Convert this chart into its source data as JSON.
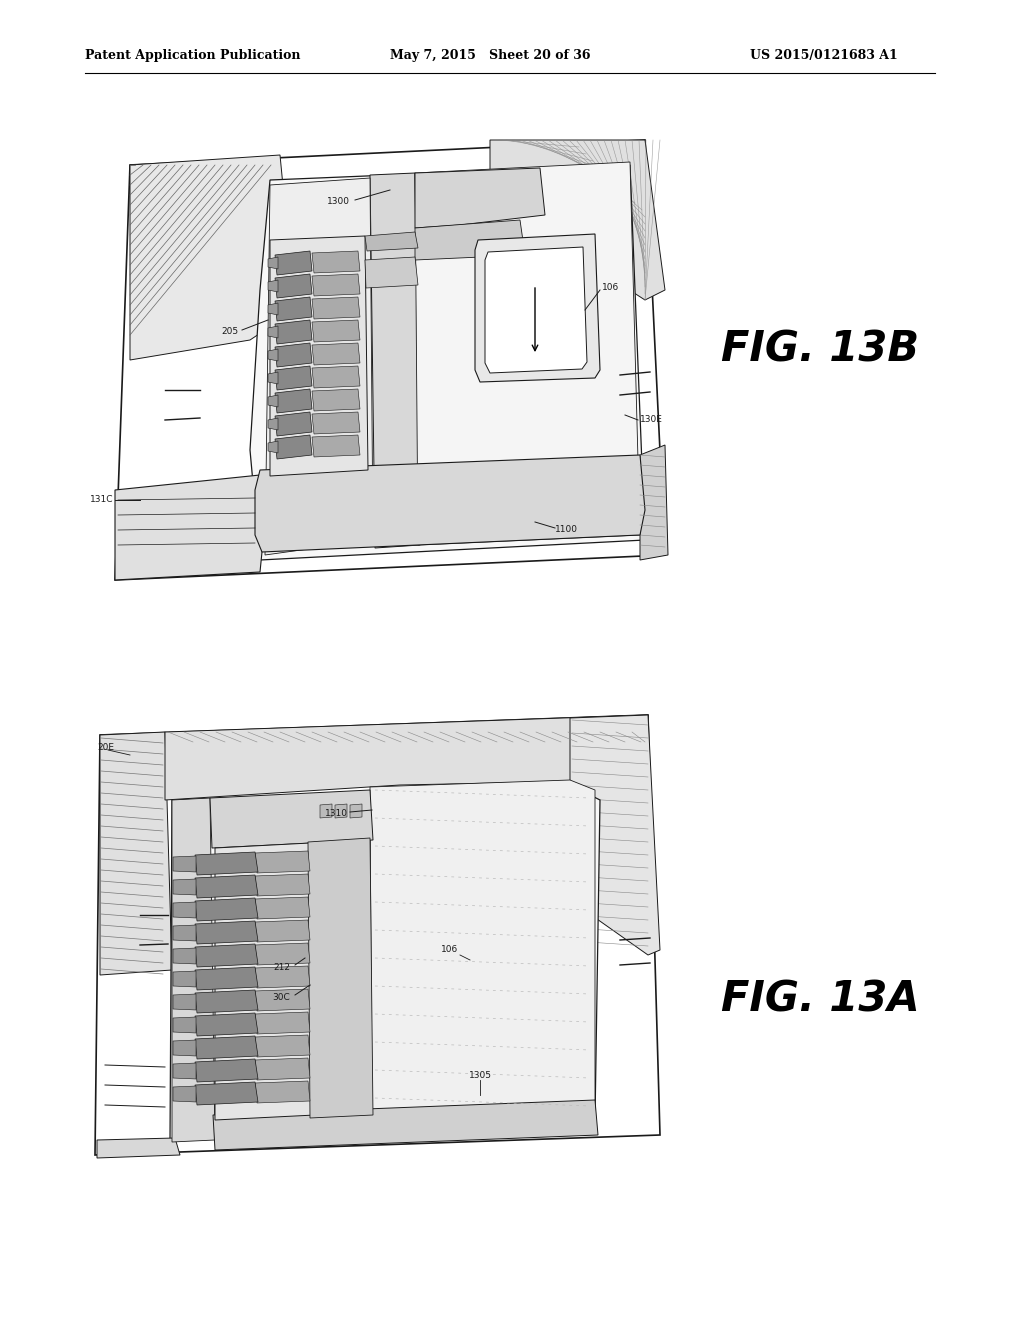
{
  "background_color": "#ffffff",
  "header_left": "Patent Application Publication",
  "header_center": "May 7, 2015   Sheet 20 of 36",
  "header_right": "US 2015/0121683 A1",
  "fig_label_top": "FIG. 13B",
  "fig_label_bottom": "FIG. 13A",
  "header_fontsize": 9,
  "fig_label_fontsize": 30,
  "page_width": 10.2,
  "page_height": 13.2,
  "line_color": "#1a1a1a",
  "hatch_color": "#555555",
  "light_fill": "#f5f5f5",
  "medium_fill": "#e0e0e0",
  "dark_fill": "#c8c8c8",
  "diag_fill": "#d5d5d5"
}
